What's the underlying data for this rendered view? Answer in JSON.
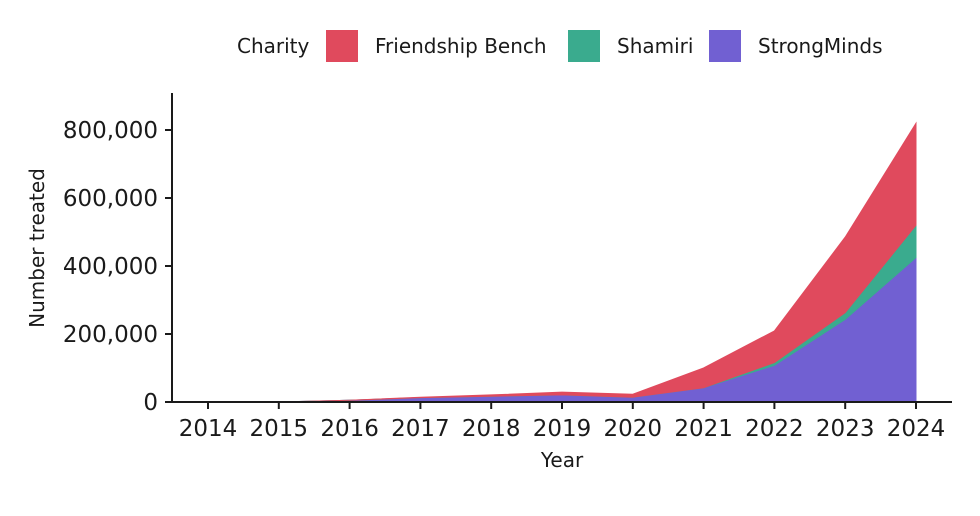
{
  "chart_data": {
    "type": "area",
    "stacked": true,
    "x": [
      2014,
      2015,
      2016,
      2017,
      2018,
      2019,
      2020,
      2021,
      2022,
      2023,
      2024
    ],
    "x_tick_labels": [
      "2014",
      "2015",
      "2016",
      "2017",
      "2018",
      "2019",
      "2020",
      "2021",
      "2022",
      "2023",
      "2024"
    ],
    "series": [
      {
        "name": "StrongMinds",
        "color": "#7160d2",
        "values": [
          0,
          0,
          5000,
          13000,
          17000,
          21000,
          14000,
          42000,
          108000,
          243000,
          425000
        ]
      },
      {
        "name": "Shamiri",
        "color": "#3aab8e",
        "values": [
          0,
          0,
          0,
          0,
          0,
          0,
          0,
          0,
          8000,
          20000,
          95000
        ]
      },
      {
        "name": "Friendship Bench",
        "color": "#e04a5d",
        "values": [
          0,
          0,
          0,
          1000,
          4000,
          8000,
          9000,
          58000,
          93000,
          222000,
          300000
        ]
      }
    ],
    "legend_order": [
      "Friendship Bench",
      "Shamiri",
      "StrongMinds"
    ],
    "legend_title": "Charity",
    "legend_position": "top",
    "xlabel": "Year",
    "ylabel": "Number treated",
    "ylim": [
      0,
      820000
    ],
    "y_ticks": [
      0,
      200000,
      400000,
      600000,
      800000
    ],
    "y_tick_labels": [
      "0",
      "200,000",
      "400,000",
      "600,000",
      "800,000"
    ],
    "grid": false
  }
}
